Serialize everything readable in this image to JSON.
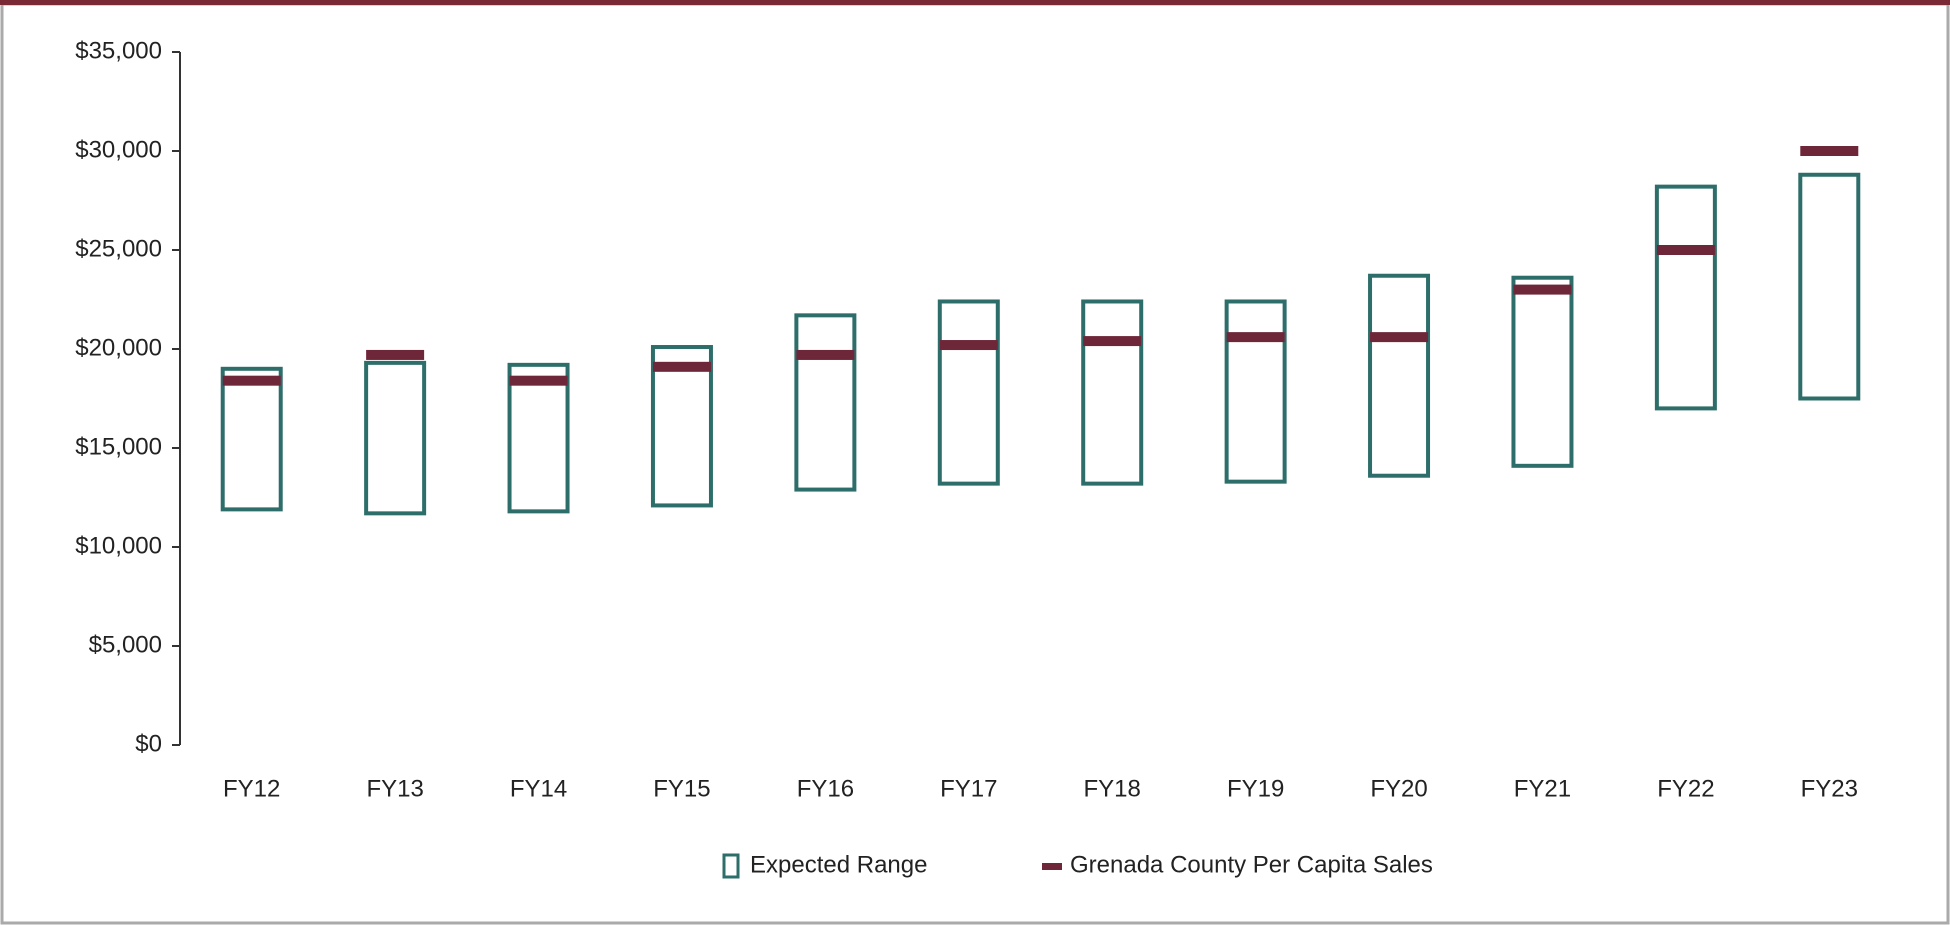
{
  "chart_data": {
    "type": "floating-bar",
    "categories": [
      "FY12",
      "FY13",
      "FY14",
      "FY15",
      "FY16",
      "FY17",
      "FY18",
      "FY19",
      "FY20",
      "FY21",
      "FY22",
      "FY23"
    ],
    "series": [
      {
        "name": "Expected Range",
        "color": "#2e6e6a",
        "low": [
          11900,
          11700,
          11800,
          12100,
          12900,
          13200,
          13200,
          13300,
          13600,
          14100,
          17000,
          17500
        ],
        "high": [
          19000,
          19300,
          19200,
          20100,
          21700,
          22400,
          22400,
          22400,
          23700,
          23600,
          28200,
          28800
        ]
      },
      {
        "name": "Grenada County Per Capita Sales",
        "color": "#6e2639",
        "values": [
          18400,
          19700,
          18400,
          19100,
          19700,
          20200,
          20400,
          20600,
          20600,
          23000,
          25000,
          30000
        ]
      }
    ],
    "ylim": [
      0,
      35000
    ],
    "yticks": [
      {
        "value": 0,
        "label": "$0"
      },
      {
        "value": 5000,
        "label": "$5,000"
      },
      {
        "value": 10000,
        "label": "$10,000"
      },
      {
        "value": 15000,
        "label": "$15,000"
      },
      {
        "value": 20000,
        "label": "$20,000"
      },
      {
        "value": 25000,
        "label": "$25,000"
      },
      {
        "value": 30000,
        "label": "$30,000"
      },
      {
        "value": 35000,
        "label": "$35,000"
      }
    ],
    "legend": "bottom"
  }
}
